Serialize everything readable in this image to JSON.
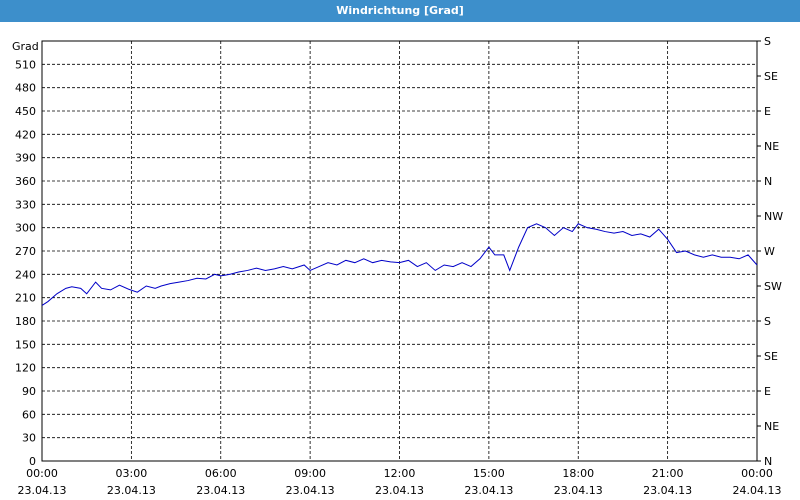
{
  "chart_data": {
    "type": "line",
    "title": "Windrichtung [Grad]",
    "y_label": "Grad",
    "xlim": [
      0,
      24
    ],
    "xticks": [
      {
        "value": 0,
        "label": "00:00",
        "date": "23.04.13"
      },
      {
        "value": 3,
        "label": "03:00",
        "date": "23.04.13"
      },
      {
        "value": 6,
        "label": "06:00",
        "date": "23.04.13"
      },
      {
        "value": 9,
        "label": "09:00",
        "date": "23.04.13"
      },
      {
        "value": 12,
        "label": "12:00",
        "date": "23.04.13"
      },
      {
        "value": 15,
        "label": "15:00",
        "date": "23.04.13"
      },
      {
        "value": 18,
        "label": "18:00",
        "date": "23.04.13"
      },
      {
        "value": 21,
        "label": "21:00",
        "date": "23.04.13"
      },
      {
        "value": 24,
        "label": "00:00",
        "date": "24.04.13"
      }
    ],
    "ylim": [
      0,
      540
    ],
    "yticks": [
      0,
      30,
      60,
      90,
      120,
      150,
      180,
      210,
      240,
      270,
      300,
      330,
      360,
      390,
      420,
      450,
      480,
      510
    ],
    "y2lim": [
      0,
      540
    ],
    "y2ticks": [
      {
        "value": 0,
        "label": "N"
      },
      {
        "value": 45,
        "label": "NE"
      },
      {
        "value": 90,
        "label": "E"
      },
      {
        "value": 135,
        "label": "SE"
      },
      {
        "value": 180,
        "label": "S"
      },
      {
        "value": 225,
        "label": "SW"
      },
      {
        "value": 270,
        "label": "W"
      },
      {
        "value": 315,
        "label": "NW"
      },
      {
        "value": 360,
        "label": "N"
      },
      {
        "value": 405,
        "label": "NE"
      },
      {
        "value": 450,
        "label": "E"
      },
      {
        "value": 495,
        "label": "SE"
      },
      {
        "value": 540,
        "label": "S"
      }
    ],
    "grid": true,
    "x": [
      0,
      0.2,
      0.5,
      0.8,
      1.0,
      1.3,
      1.5,
      1.8,
      2.0,
      2.3,
      2.6,
      2.9,
      3.2,
      3.5,
      3.8,
      4.0,
      4.3,
      4.6,
      4.9,
      5.2,
      5.5,
      5.8,
      6.0,
      6.3,
      6.6,
      6.9,
      7.2,
      7.5,
      7.8,
      8.1,
      8.4,
      8.8,
      9.0,
      9.3,
      9.6,
      9.9,
      10.2,
      10.5,
      10.8,
      11.1,
      11.4,
      11.7,
      12.0,
      12.3,
      12.6,
      12.9,
      13.2,
      13.5,
      13.8,
      14.1,
      14.4,
      14.7,
      15.0,
      15.2,
      15.5,
      15.7,
      16.0,
      16.3,
      16.6,
      16.9,
      17.2,
      17.5,
      17.8,
      18.0,
      18.3,
      18.6,
      18.9,
      19.2,
      19.5,
      19.8,
      20.1,
      20.4,
      20.7,
      21.0,
      21.3,
      21.6,
      21.9,
      22.2,
      22.5,
      22.8,
      23.1,
      23.4,
      23.7,
      24.0
    ],
    "series": [
      {
        "name": "Windrichtung",
        "color": "#0000c8",
        "values": [
          200,
          205,
          215,
          222,
          224,
          222,
          215,
          230,
          222,
          220,
          226,
          221,
          217,
          225,
          222,
          225,
          228,
          230,
          232,
          235,
          234,
          240,
          238,
          240,
          243,
          245,
          248,
          245,
          247,
          250,
          247,
          252,
          245,
          250,
          255,
          252,
          258,
          255,
          260,
          255,
          258,
          256,
          255,
          258,
          250,
          255,
          245,
          252,
          250,
          255,
          250,
          260,
          275,
          265,
          265,
          245,
          275,
          300,
          305,
          300,
          290,
          300,
          295,
          305,
          300,
          298,
          295,
          293,
          295,
          290,
          292,
          288,
          298,
          285,
          268,
          270,
          265,
          262,
          265,
          262,
          262,
          260,
          265,
          252
        ]
      }
    ]
  }
}
